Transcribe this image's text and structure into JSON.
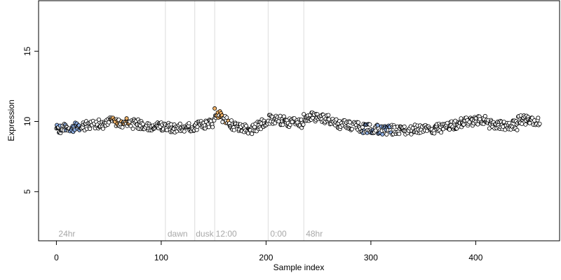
{
  "chart_data": {
    "type": "scatter",
    "title": "",
    "xlabel": "Sample index",
    "ylabel": "Expression",
    "xlim": [
      -17,
      480
    ],
    "ylim": [
      1.5,
      18.6
    ],
    "xticks": [
      "0",
      "100",
      "200",
      "300",
      "400"
    ],
    "yticks": [
      "5",
      "10",
      "15"
    ],
    "grid": false,
    "legend": "none",
    "colors": {
      "frame": "#000000",
      "marker_edge": "#000000",
      "phase_line": "#dcdcdc",
      "phase_text": "#a8a8a8",
      "blue": "#8fb0e6",
      "orange": "#f3b56b",
      "white": "#ffffff"
    },
    "phase_lines": [
      104,
      132,
      151,
      202,
      236
    ],
    "phase_labels": [
      {
        "x": 2,
        "text": "24hr"
      },
      {
        "x": 106,
        "text": "dawn"
      },
      {
        "x": 133,
        "text": "dusk"
      },
      {
        "x": 152,
        "text": "12:00"
      },
      {
        "x": 204,
        "text": "0:00"
      },
      {
        "x": 238,
        "text": "48hr"
      }
    ],
    "segments": [
      {
        "x0": 0,
        "x1": 24,
        "y0": 9.4,
        "y1": 9.7,
        "fill": "blue"
      },
      {
        "x0": 24,
        "x1": 50,
        "y0": 9.7,
        "y1": 9.85,
        "fill": "white"
      },
      {
        "x0": 50,
        "x1": 70,
        "y0": 10.0,
        "y1": 9.85,
        "fill": "orange"
      },
      {
        "x0": 70,
        "x1": 104,
        "y0": 9.85,
        "y1": 9.6,
        "fill": "white"
      },
      {
        "x0": 104,
        "x1": 132,
        "y0": 9.6,
        "y1": 9.5,
        "fill": "white"
      },
      {
        "x0": 132,
        "x1": 151,
        "y0": 9.6,
        "y1": 9.9,
        "fill": "white"
      },
      {
        "x0": 151,
        "x1": 165,
        "y0": 10.6,
        "y1": 10.0,
        "fill": "orange"
      },
      {
        "x0": 165,
        "x1": 188,
        "y0": 9.8,
        "y1": 9.4,
        "fill": "white"
      },
      {
        "x0": 188,
        "x1": 202,
        "y0": 9.5,
        "y1": 10.1,
        "fill": "white"
      },
      {
        "x0": 202,
        "x1": 236,
        "y0": 10.2,
        "y1": 9.8,
        "fill": "white"
      },
      {
        "x0": 236,
        "x1": 262,
        "y0": 10.4,
        "y1": 10.1,
        "fill": "white"
      },
      {
        "x0": 262,
        "x1": 290,
        "y0": 9.9,
        "y1": 9.6,
        "fill": "white"
      },
      {
        "x0": 290,
        "x1": 320,
        "y0": 9.5,
        "y1": 9.4,
        "fill": "blue"
      },
      {
        "x0": 320,
        "x1": 372,
        "y0": 9.4,
        "y1": 9.5,
        "fill": "white"
      },
      {
        "x0": 372,
        "x1": 410,
        "y0": 9.7,
        "y1": 10.2,
        "fill": "white"
      },
      {
        "x0": 410,
        "x1": 440,
        "y0": 9.8,
        "y1": 9.7,
        "fill": "white"
      },
      {
        "x0": 440,
        "x1": 462,
        "y0": 10.2,
        "y1": 10.0,
        "fill": "white"
      }
    ]
  }
}
